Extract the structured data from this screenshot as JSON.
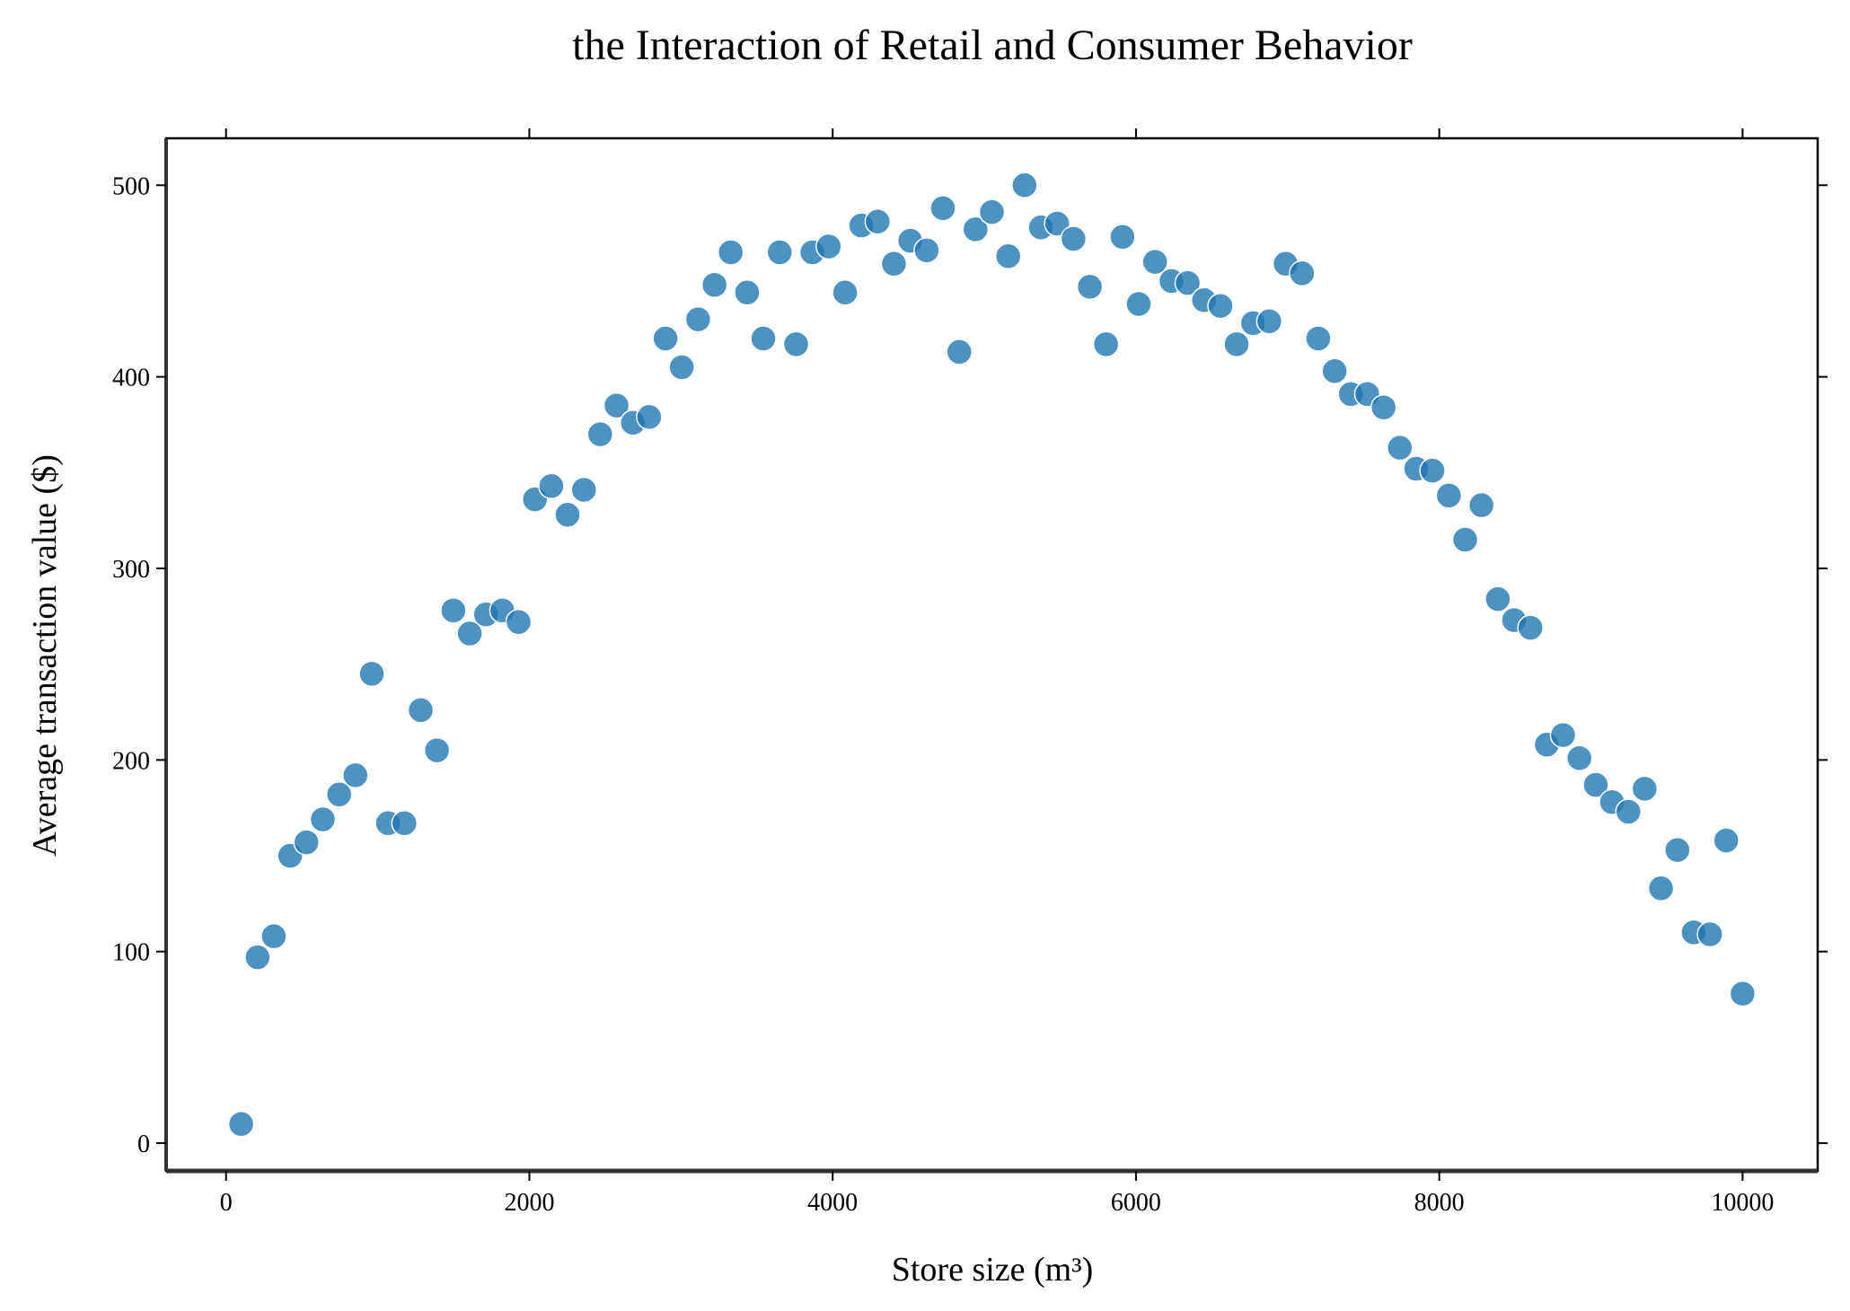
{
  "chart_data": {
    "type": "scatter",
    "title": "the Interaction of Retail and Consumer Behavior",
    "x_label": "Store size (m³)",
    "y_label": "Average transaction value ($)",
    "color": "#1f77b4",
    "xlim": [
      -395,
      10495
    ],
    "ylim": [
      -14.5,
      524.5
    ],
    "xticks": [
      0,
      2000,
      4000,
      6000,
      8000,
      10000
    ],
    "yticks": [
      0,
      100,
      200,
      300,
      400,
      500
    ],
    "x": [
      100,
      208,
      315,
      423,
      530,
      638,
      746,
      853,
      961,
      1068,
      1176,
      1284,
      1391,
      1499,
      1607,
      1714,
      1822,
      1929,
      2037,
      2145,
      2252,
      2360,
      2467,
      2575,
      2683,
      2790,
      2898,
      3005,
      3113,
      3221,
      3328,
      3436,
      3543,
      3651,
      3759,
      3866,
      3974,
      4082,
      4189,
      4297,
      4404,
      4512,
      4620,
      4727,
      4835,
      4942,
      5050,
      5158,
      5265,
      5373,
      5480,
      5588,
      5696,
      5803,
      5911,
      6018,
      6126,
      6234,
      6341,
      6449,
      6557,
      6664,
      6772,
      6879,
      6987,
      7095,
      7202,
      7310,
      7417,
      7525,
      7633,
      7740,
      7848,
      7955,
      8063,
      8171,
      8278,
      8386,
      8493,
      8601,
      8709,
      8816,
      8924,
      9032,
      9139,
      9247,
      9354,
      9462,
      9570,
      9677,
      9785,
      9892,
      10000
    ],
    "values": [
      10,
      97,
      108,
      150,
      157,
      169,
      182,
      192,
      245,
      167,
      167,
      226,
      205,
      278,
      266,
      276,
      278,
      272,
      336,
      343,
      328,
      341,
      370,
      385,
      376,
      379,
      420,
      405,
      430,
      448,
      465,
      444,
      420,
      465,
      417,
      465,
      468,
      444,
      479,
      481,
      459,
      471,
      466,
      488,
      413,
      477,
      486,
      463,
      500,
      478,
      480,
      472,
      447,
      417,
      473,
      438,
      460,
      450,
      449,
      440,
      437,
      417,
      428,
      429,
      459,
      454,
      420,
      403,
      391,
      391,
      384,
      363,
      352,
      351,
      338,
      315,
      333,
      284,
      273,
      269,
      208,
      213,
      201,
      187,
      178,
      173,
      185,
      133,
      153,
      110,
      109,
      158,
      78
    ]
  }
}
